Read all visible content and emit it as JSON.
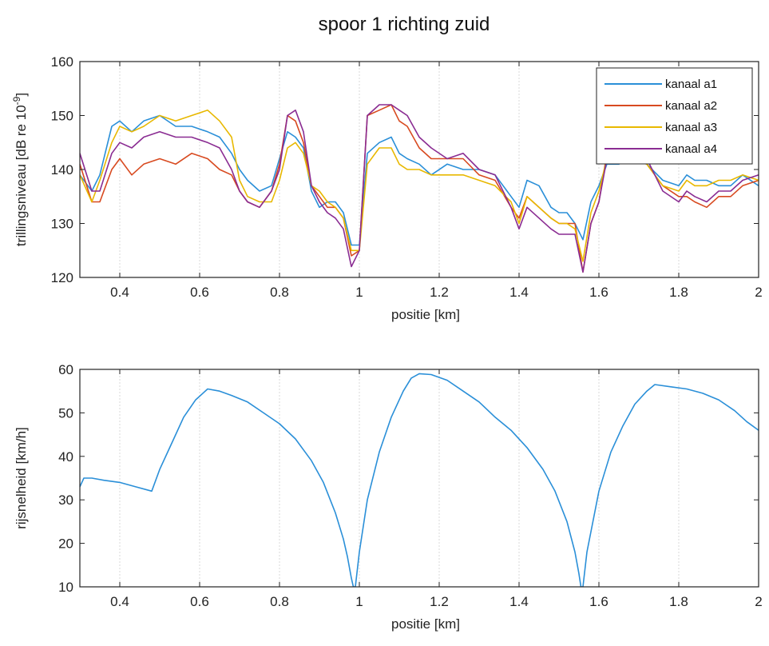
{
  "figure_title": "spoor 1 richting zuid",
  "chart_data": [
    {
      "type": "line",
      "title": "spoor 1 richting zuid",
      "xlabel": "positie [km]",
      "ylabel": "trillingsniveau [dB re 10",
      "ylabel_sup": "-9",
      "ylabel_end": "]",
      "xlim": [
        0.3,
        2.0
      ],
      "ylim": [
        120,
        160
      ],
      "xticks": [
        0.4,
        0.6,
        0.8,
        1,
        1.2,
        1.4,
        1.6,
        1.8,
        2
      ],
      "yticks": [
        120,
        130,
        140,
        150,
        160
      ],
      "grid": "vertical",
      "legend": "top-right",
      "x": [
        0.3,
        0.33,
        0.35,
        0.38,
        0.4,
        0.43,
        0.46,
        0.5,
        0.54,
        0.58,
        0.62,
        0.65,
        0.68,
        0.7,
        0.72,
        0.75,
        0.78,
        0.8,
        0.82,
        0.84,
        0.86,
        0.88,
        0.9,
        0.92,
        0.94,
        0.96,
        0.98,
        1.0,
        1.02,
        1.05,
        1.08,
        1.1,
        1.12,
        1.15,
        1.18,
        1.22,
        1.26,
        1.3,
        1.34,
        1.38,
        1.4,
        1.42,
        1.45,
        1.48,
        1.5,
        1.52,
        1.54,
        1.56,
        1.58,
        1.6,
        1.62,
        1.65,
        1.68,
        1.72,
        1.76,
        1.8,
        1.82,
        1.84,
        1.87,
        1.9,
        1.93,
        1.96,
        2.0
      ],
      "series": [
        {
          "name": "kanaal a1",
          "color": "#2a8fd8",
          "values": [
            139,
            136,
            139,
            148,
            149,
            147,
            149,
            150,
            148,
            148,
            147,
            146,
            143,
            140,
            138,
            136,
            137,
            142,
            147,
            146,
            144,
            136,
            133,
            134,
            134,
            132,
            126,
            126,
            143,
            145,
            146,
            143,
            142,
            141,
            139,
            141,
            140,
            140,
            139,
            135,
            133,
            138,
            137,
            133,
            132,
            132,
            130,
            127,
            134,
            137,
            141,
            141,
            142,
            141,
            138,
            137,
            139,
            138,
            138,
            137,
            137,
            139,
            137
          ]
        },
        {
          "name": "kanaal a2",
          "color": "#d84a20",
          "values": [
            141,
            134,
            134,
            140,
            142,
            139,
            141,
            142,
            141,
            143,
            142,
            140,
            139,
            136,
            134,
            133,
            136,
            141,
            150,
            149,
            145,
            137,
            135,
            133,
            133,
            131,
            124,
            125,
            150,
            151,
            152,
            149,
            148,
            144,
            142,
            142,
            142,
            139,
            138,
            133,
            131,
            135,
            133,
            131,
            130,
            130,
            130,
            121,
            130,
            134,
            143,
            142,
            142,
            141,
            137,
            135,
            135,
            134,
            133,
            135,
            135,
            137,
            138
          ]
        },
        {
          "name": "kanaal a3",
          "color": "#e8b800",
          "values": [
            139,
            134,
            138,
            145,
            148,
            147,
            148,
            150,
            149,
            150,
            151,
            149,
            146,
            138,
            135,
            134,
            134,
            138,
            144,
            145,
            143,
            137,
            136,
            134,
            133,
            131,
            125,
            125,
            141,
            144,
            144,
            141,
            140,
            140,
            139,
            139,
            139,
            138,
            137,
            134,
            130,
            135,
            133,
            131,
            130,
            130,
            129,
            123,
            132,
            136,
            142,
            142,
            142,
            141,
            137,
            136,
            138,
            137,
            137,
            138,
            138,
            139,
            138
          ]
        },
        {
          "name": "kanaal a4",
          "color": "#8a2c92",
          "values": [
            143,
            136,
            136,
            143,
            145,
            144,
            146,
            147,
            146,
            146,
            145,
            144,
            140,
            136,
            134,
            133,
            136,
            140,
            150,
            151,
            147,
            137,
            134,
            132,
            131,
            129,
            122,
            125,
            150,
            152,
            152,
            151,
            150,
            146,
            144,
            142,
            143,
            140,
            139,
            133,
            129,
            133,
            131,
            129,
            128,
            128,
            128,
            121,
            130,
            134,
            142,
            143,
            143,
            142,
            136,
            134,
            136,
            135,
            134,
            136,
            136,
            138,
            139
          ]
        }
      ]
    },
    {
      "type": "line",
      "title": "",
      "xlabel": "positie [km]",
      "ylabel": "rijsnelheid [km/h]",
      "xlim": [
        0.3,
        2.0
      ],
      "ylim": [
        10,
        60
      ],
      "xticks": [
        0.4,
        0.6,
        0.8,
        1,
        1.2,
        1.4,
        1.6,
        1.8,
        2
      ],
      "yticks": [
        10,
        20,
        30,
        40,
        50,
        60
      ],
      "grid": "vertical",
      "x": [
        0.3,
        0.31,
        0.33,
        0.36,
        0.4,
        0.44,
        0.48,
        0.5,
        0.53,
        0.56,
        0.59,
        0.62,
        0.65,
        0.68,
        0.72,
        0.76,
        0.8,
        0.84,
        0.88,
        0.91,
        0.94,
        0.96,
        0.97,
        0.98,
        0.985,
        0.99,
        1.0,
        1.02,
        1.05,
        1.08,
        1.11,
        1.13,
        1.15,
        1.18,
        1.22,
        1.26,
        1.3,
        1.34,
        1.38,
        1.42,
        1.46,
        1.49,
        1.52,
        1.54,
        1.55,
        1.555,
        1.56,
        1.57,
        1.6,
        1.63,
        1.66,
        1.69,
        1.72,
        1.74,
        1.78,
        1.82,
        1.86,
        1.9,
        1.94,
        1.97,
        2.0
      ],
      "series": [
        {
          "name": "",
          "color": "#2a8fd8",
          "values": [
            33,
            35,
            35,
            34.5,
            34,
            33,
            32,
            37,
            43,
            49,
            53,
            55.5,
            55,
            54,
            52.5,
            50,
            47.5,
            44,
            39,
            34,
            27,
            21,
            17,
            12,
            10,
            10,
            18,
            30,
            41,
            49,
            55,
            58,
            59,
            58.8,
            57.5,
            55,
            52.5,
            49,
            46,
            42,
            37,
            32,
            25,
            18,
            13,
            10,
            10,
            18,
            32,
            41,
            47,
            52,
            55,
            56.5,
            56,
            55.5,
            54.5,
            53,
            50.5,
            48,
            46
          ]
        }
      ]
    }
  ]
}
